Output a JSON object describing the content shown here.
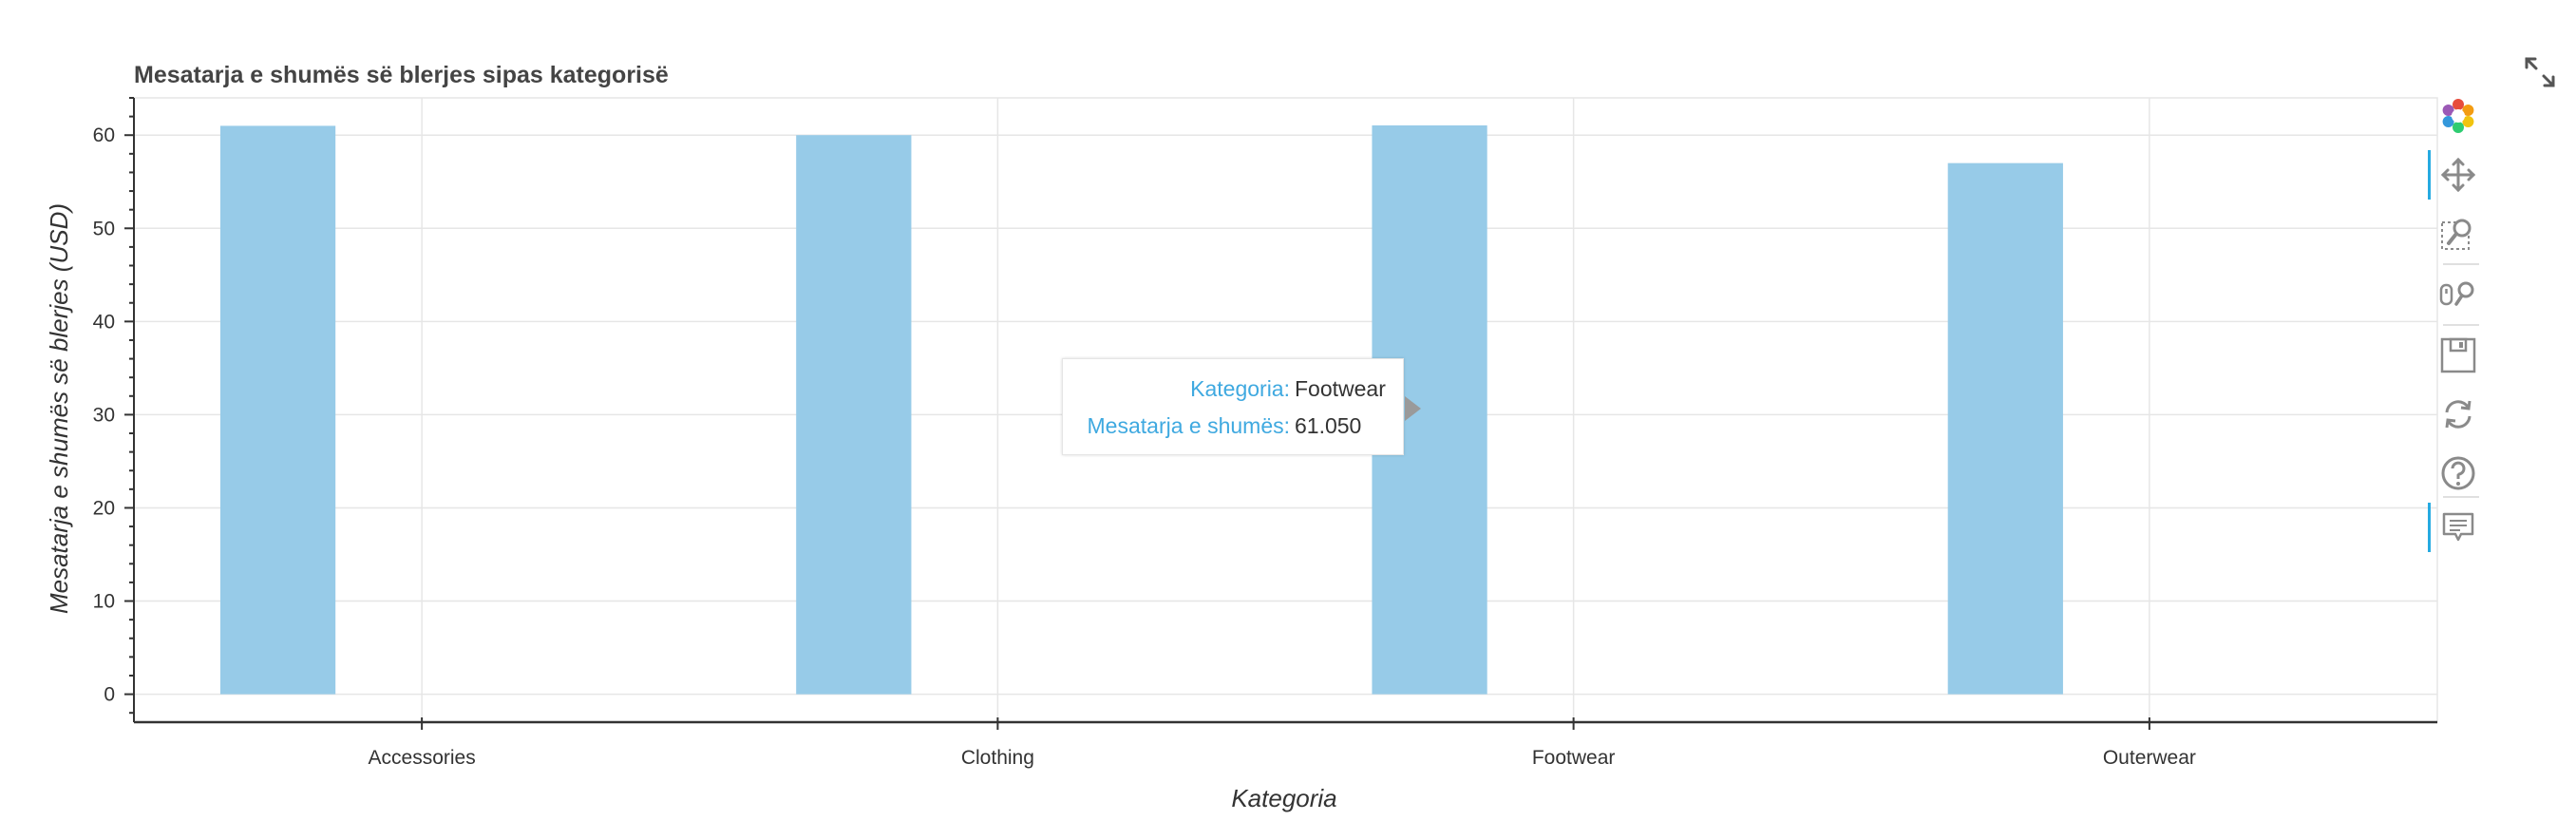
{
  "chart_data": {
    "type": "bar",
    "title": "Mesatarja e shumës së blerjes sipas kategorisë",
    "xlabel": "Kategoria",
    "ylabel": "Mesatarja e shumës së blerjes (USD)",
    "categories": [
      "Accessories",
      "Clothing",
      "Footwear",
      "Outerwear"
    ],
    "values": [
      61.0,
      60.0,
      61.05,
      57.0
    ],
    "ylim": [
      -3,
      64
    ],
    "yticks": [
      0,
      10,
      20,
      30,
      40,
      50,
      60
    ],
    "grid": true,
    "bar_color": "#97cbe8"
  },
  "tooltip": {
    "key1": "Kategoria:",
    "val1": "Footwear",
    "key2": "Mesatarja e shumës:",
    "val2": "61.050"
  },
  "toolbar": {
    "tools": [
      {
        "name": "bokeh-logo-icon",
        "active": false
      },
      {
        "name": "pan-tool-icon",
        "active": true
      },
      {
        "name": "box-zoom-tool-icon",
        "active": false
      },
      {
        "name": "wheel-zoom-tool-icon",
        "active": false
      },
      {
        "name": "save-tool-icon",
        "active": false
      },
      {
        "name": "reset-tool-icon",
        "active": false
      },
      {
        "name": "help-tool-icon",
        "active": false
      },
      {
        "name": "hover-tool-icon",
        "active": true
      }
    ]
  },
  "colors": {
    "accent": "#26aae1",
    "grid": "#e6e6e6",
    "axis": "#333333"
  }
}
